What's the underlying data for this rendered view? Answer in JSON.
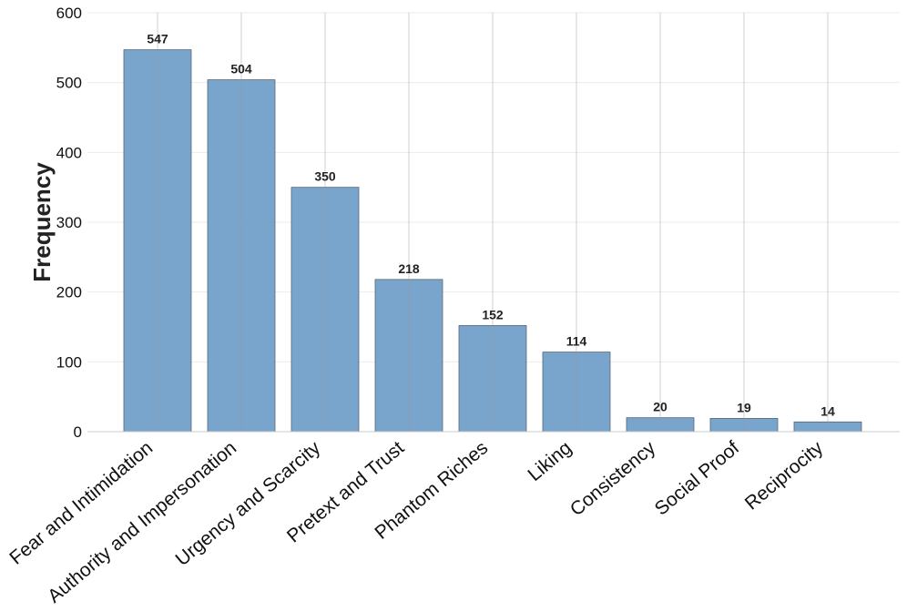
{
  "chart_data": {
    "type": "bar",
    "title": "",
    "xlabel": "",
    "ylabel": "Frequency",
    "ylim": [
      0,
      600
    ],
    "yticks": [
      0,
      100,
      200,
      300,
      400,
      500,
      600
    ],
    "categories": [
      "Fear and Intimidation",
      "Authority and Impersonation",
      "Urgency and Scarcity",
      "Pretext and Trust",
      "Phantom Riches",
      "Liking",
      "Consistency",
      "Social Proof",
      "Reciprocity"
    ],
    "values": [
      547,
      504,
      350,
      218,
      152,
      114,
      20,
      19,
      14
    ],
    "data_labels": [
      "547",
      "504",
      "350",
      "218",
      "152",
      "114",
      "20",
      "19",
      "14"
    ],
    "grid": true,
    "bar_color": "#6e9cc7",
    "bar_edge_color": "#556677"
  }
}
